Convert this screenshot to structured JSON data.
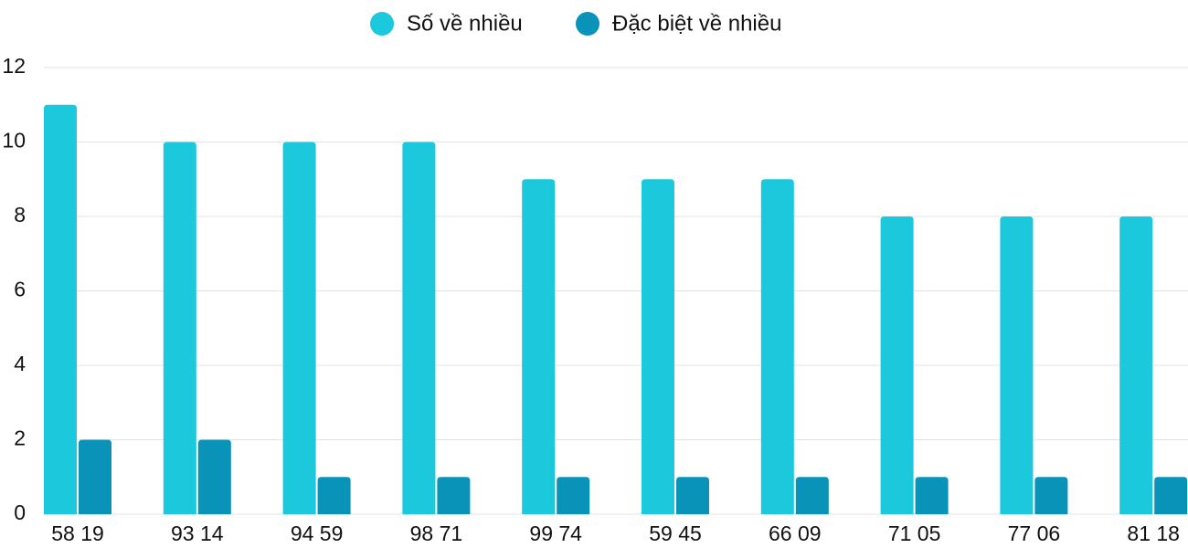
{
  "chart_data": {
    "type": "bar",
    "categories": [
      "58 19",
      "93 14",
      "94 59",
      "98 71",
      "99 74",
      "59 45",
      "66 09",
      "71 05",
      "77 06",
      "81 18"
    ],
    "series": [
      {
        "name": "Số về nhiều",
        "color": "#1bc8dc",
        "values": [
          11,
          10,
          10,
          10,
          9,
          9,
          9,
          8,
          8,
          8
        ]
      },
      {
        "name": "Đặc biệt về nhiều",
        "color": "#0a93b8",
        "values": [
          2,
          2,
          1,
          1,
          1,
          1,
          1,
          1,
          1,
          1
        ]
      }
    ],
    "ylim": [
      0,
      12
    ],
    "yticks": [
      0,
      2,
      4,
      6,
      8,
      10,
      12
    ],
    "grid": true,
    "legend": "top"
  }
}
